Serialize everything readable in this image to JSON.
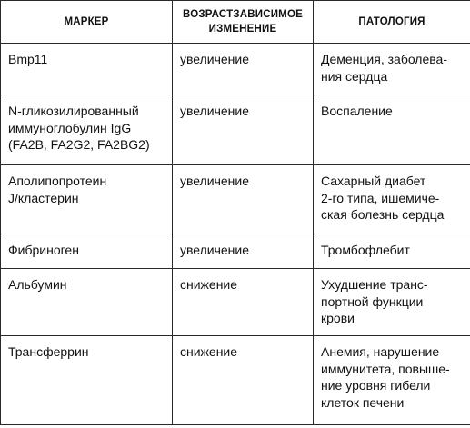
{
  "table": {
    "headers": {
      "marker": "МАРКЕР",
      "change": "ВОЗРАСТЗАВИСИМОЕ\nИЗМЕНЕНИЕ",
      "pathology": "ПАТОЛОГИЯ"
    },
    "rows": [
      {
        "marker": "Bmp11",
        "change": "увеличение",
        "pathology": "Деменция, заболева-\nния сердца"
      },
      {
        "marker": "N-гликозилированный\nиммуноглобулин IgG\n(FA2B, FA2G2, FA2BG2)",
        "change": "увеличение",
        "pathology": "Воспаление"
      },
      {
        "marker": "Аполипопротеин\nJ/кластерин",
        "change": "увеличение",
        "pathology": "Сахарный диабет\n2-го типа, ишемиче-\nская болезнь сердца"
      },
      {
        "marker": "Фибриноген",
        "change": "увеличение",
        "pathology": "Тромбофлебит"
      },
      {
        "marker": "Альбумин",
        "change": "снижение",
        "pathology": "Ухудшение транс-\nпортной функции\nкрови"
      },
      {
        "marker": "Трансферрин",
        "change": "снижение",
        "pathology": "Анемия, нарушение\nиммунитета, повыше-\nние уровня гибели\nклеток печени"
      }
    ]
  }
}
